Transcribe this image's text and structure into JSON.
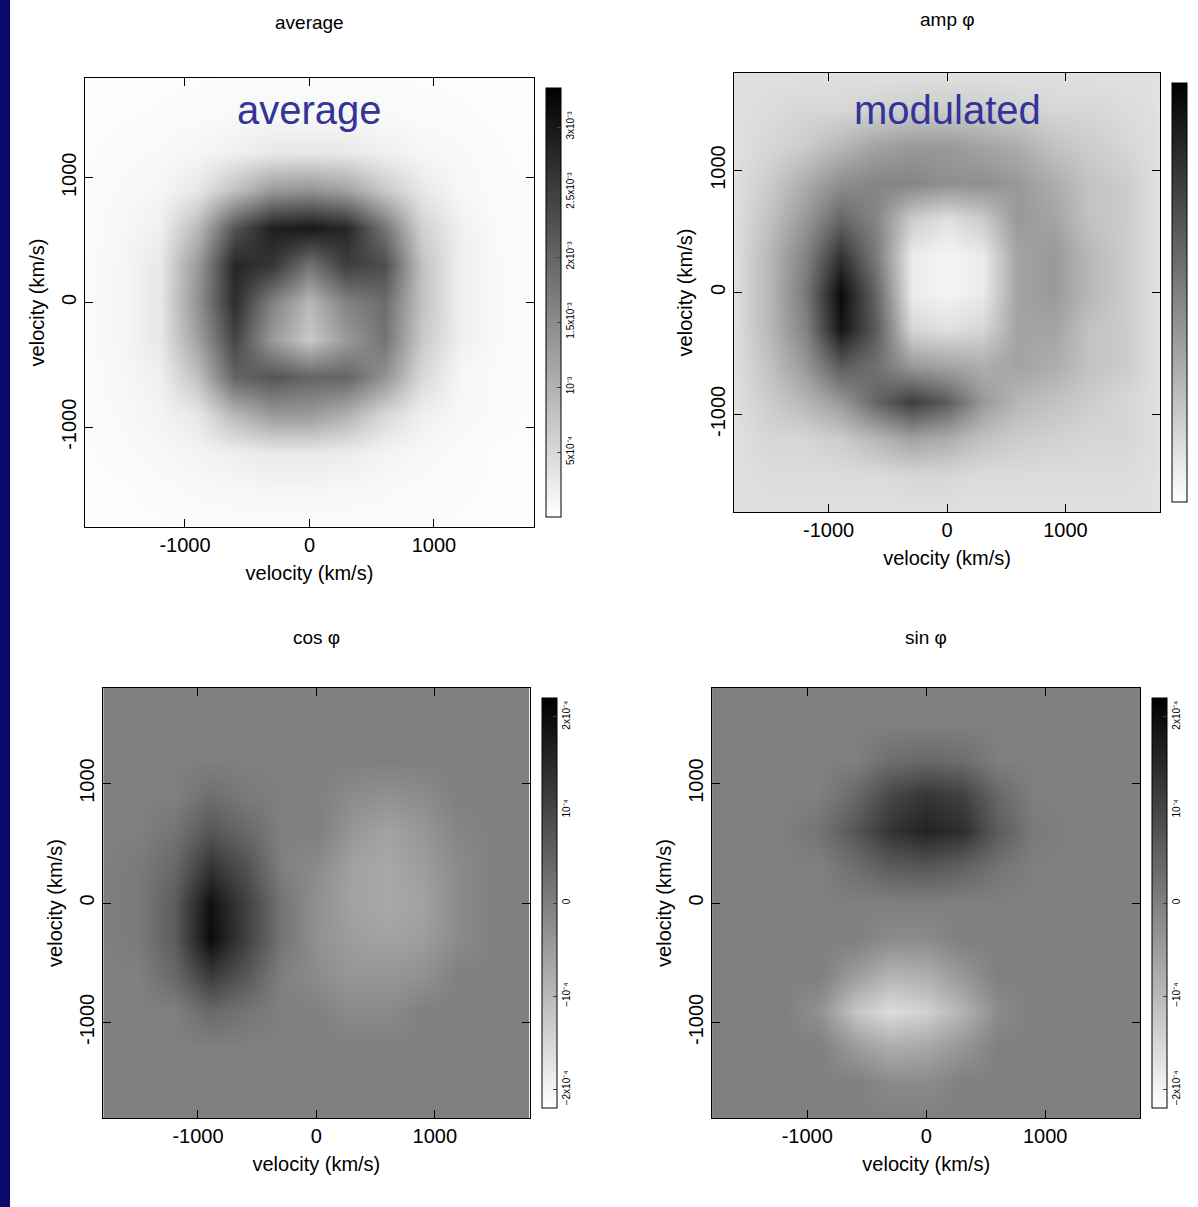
{
  "chart_data": [
    {
      "type": "heatmap",
      "title": "average",
      "annotations": [
        "average"
      ],
      "xlabel": "velocity (km/s)",
      "ylabel": "velocity (km/s)",
      "xlim": [
        -1800,
        1800
      ],
      "ylim": [
        -1800,
        1800
      ],
      "xticks": [
        -1000,
        0,
        1000
      ],
      "yticks": [
        -1000,
        0,
        1000
      ],
      "x": [
        -1800,
        -1500,
        -1200,
        -900,
        -600,
        -300,
        0,
        300,
        600,
        900,
        1200,
        1500,
        1800
      ],
      "y": [
        -1800,
        -1500,
        -1200,
        -900,
        -600,
        -300,
        0,
        300,
        600,
        900,
        1200,
        1500,
        1800
      ],
      "z": [
        [
          2e-05,
          3e-05,
          4e-05,
          5e-05,
          5e-05,
          5e-05,
          5e-05,
          5e-05,
          5e-05,
          5e-05,
          4e-05,
          3e-05,
          2e-05
        ],
        [
          3e-05,
          4e-05,
          6e-05,
          8e-05,
          0.0001,
          0.00012,
          0.00012,
          0.0001,
          8e-05,
          6e-05,
          5e-05,
          4e-05,
          3e-05
        ],
        [
          4e-05,
          6e-05,
          0.0001,
          0.00015,
          0.00022,
          0.0003,
          0.0003,
          0.00025,
          0.00015,
          0.0001,
          6e-05,
          4e-05,
          3e-05
        ],
        [
          5e-05,
          8e-05,
          0.00015,
          0.0003,
          0.0009,
          0.0013,
          0.0013,
          0.001,
          0.0005,
          0.0002,
          0.0001,
          6e-05,
          4e-05
        ],
        [
          5e-05,
          0.0001,
          0.0002,
          0.0008,
          0.002,
          0.0022,
          0.002,
          0.002,
          0.0014,
          0.0005,
          0.0001,
          6e-05,
          4e-05
        ],
        [
          6e-05,
          0.00012,
          0.0003,
          0.0012,
          0.0024,
          0.0013,
          0.0007,
          0.0013,
          0.0018,
          0.0007,
          0.0002,
          8e-05,
          4e-05
        ],
        [
          6e-05,
          0.00012,
          0.0003,
          0.0014,
          0.0027,
          0.0016,
          0.0009,
          0.0016,
          0.0019,
          0.0008,
          0.0002,
          8e-05,
          4e-05
        ],
        [
          6e-05,
          0.00012,
          0.0003,
          0.0013,
          0.0028,
          0.0026,
          0.0018,
          0.0025,
          0.0023,
          0.0008,
          0.0002,
          8e-05,
          4e-05
        ],
        [
          5e-05,
          0.0001,
          0.0002,
          0.0009,
          0.0022,
          0.0029,
          0.003,
          0.0028,
          0.0018,
          0.0006,
          0.0002,
          6e-05,
          4e-05
        ],
        [
          5e-05,
          8e-05,
          0.00012,
          0.0003,
          0.0008,
          0.0013,
          0.0014,
          0.0012,
          0.0007,
          0.0003,
          0.0001,
          6e-05,
          4e-05
        ],
        [
          4e-05,
          6e-05,
          8e-05,
          0.00012,
          0.0002,
          0.0003,
          0.0003,
          0.0003,
          0.0002,
          0.00012,
          8e-05,
          5e-05,
          3e-05
        ],
        [
          3e-05,
          4e-05,
          5e-05,
          6e-05,
          8e-05,
          0.0001,
          0.0001,
          0.0001,
          8e-05,
          6e-05,
          5e-05,
          4e-05,
          3e-05
        ],
        [
          2e-05,
          3e-05,
          4e-05,
          4e-05,
          5e-05,
          5e-05,
          5e-05,
          5e-05,
          5e-05,
          4e-05,
          4e-05,
          3e-05,
          2e-05
        ]
      ],
      "colorbar": {
        "range": [
          0,
          0.0033
        ],
        "ticks": [
          {
            "value": 0.0005,
            "label": "5x10⁻⁴"
          },
          {
            "value": 0.001,
            "label": "10⁻³"
          },
          {
            "value": 0.0015,
            "label": "1.5x10⁻³"
          },
          {
            "value": 0.002,
            "label": "2x10⁻³"
          },
          {
            "value": 0.0025,
            "label": "2.5x10⁻³"
          },
          {
            "value": 0.003,
            "label": "3x10⁻³"
          }
        ]
      }
    },
    {
      "type": "heatmap",
      "title": "amp φ",
      "annotations": [
        "modulated"
      ],
      "xlabel": "velocity (km/s)",
      "ylabel": "velocity (km/s)",
      "xlim": [
        -1800,
        1800
      ],
      "ylim": [
        -1800,
        1800
      ],
      "xticks": [
        -1000,
        0,
        1000
      ],
      "yticks": [
        -1000,
        0,
        1000
      ],
      "x": [
        -1800,
        -1500,
        -1200,
        -900,
        -600,
        -300,
        0,
        300,
        600,
        900,
        1200,
        1500,
        1800
      ],
      "y": [
        -1800,
        -1500,
        -1200,
        -900,
        -600,
        -300,
        0,
        300,
        600,
        900,
        1200,
        1500,
        1800
      ],
      "z": [
        [
          3e-05,
          3e-05,
          3e-05,
          3e-05,
          3e-05,
          3e-05,
          3e-05,
          3e-05,
          3e-05,
          3e-05,
          3e-05,
          3e-05,
          3e-05
        ],
        [
          3e-05,
          3.5e-05,
          3.5e-05,
          3.5e-05,
          3.5e-05,
          4e-05,
          4e-05,
          3.5e-05,
          3.5e-05,
          3.5e-05,
          3.5e-05,
          3.5e-05,
          3e-05
        ],
        [
          3e-05,
          4e-05,
          4e-05,
          5e-05,
          7e-05,
          9e-05,
          8e-05,
          6e-05,
          5e-05,
          4.5e-05,
          4e-05,
          4e-05,
          3e-05
        ],
        [
          3e-05,
          5e-05,
          7e-05,
          0.0001,
          0.00015,
          0.00019,
          0.00016,
          0.0001,
          7e-05,
          6e-05,
          5e-05,
          4e-05,
          3e-05
        ],
        [
          3e-05,
          6e-05,
          0.0001,
          0.00016,
          0.00014,
          0.0001,
          9e-05,
          8e-05,
          9e-05,
          8e-05,
          6e-05,
          5e-05,
          3e-05
        ],
        [
          3e-05,
          7e-05,
          0.00012,
          0.00023,
          0.00016,
          4e-05,
          3e-05,
          4e-05,
          9e-05,
          9e-05,
          6e-05,
          5e-05,
          3e-05
        ],
        [
          3e-05,
          7e-05,
          0.00013,
          0.00024,
          0.00015,
          2e-05,
          1e-05,
          2e-05,
          9e-05,
          0.0001,
          7e-05,
          5e-05,
          3e-05
        ],
        [
          3e-05,
          7e-05,
          0.00012,
          0.0002,
          0.00013,
          2e-05,
          1e-05,
          2e-05,
          9e-05,
          0.0001,
          7e-05,
          5e-05,
          3e-05
        ],
        [
          3e-05,
          6e-05,
          0.0001,
          0.00015,
          0.00012,
          5e-05,
          3e-05,
          5e-05,
          0.0001,
          9e-05,
          6e-05,
          5e-05,
          3e-05
        ],
        [
          3e-05,
          5e-05,
          8e-05,
          0.00011,
          0.00012,
          0.00012,
          0.00011,
          0.00011,
          0.0001,
          8e-05,
          6e-05,
          5e-05,
          3e-05
        ],
        [
          3e-05,
          4e-05,
          5e-05,
          7e-05,
          9e-05,
          0.0001,
          0.0001,
          9e-05,
          8e-05,
          6e-05,
          5e-05,
          4e-05,
          3e-05
        ],
        [
          3e-05,
          3.5e-05,
          4e-05,
          4e-05,
          4.5e-05,
          5e-05,
          5e-05,
          5e-05,
          4.5e-05,
          4e-05,
          4e-05,
          3.5e-05,
          3e-05
        ],
        [
          3e-05,
          3e-05,
          3e-05,
          3e-05,
          3e-05,
          3e-05,
          3e-05,
          3e-05,
          3e-05,
          3e-05,
          3e-05,
          3e-05,
          3e-05
        ]
      ],
      "colorbar": {
        "range": [
          0,
          0.00025
        ]
      }
    },
    {
      "type": "heatmap",
      "title": "cos φ",
      "xlabel": "velocity (km/s)",
      "ylabel": "velocity (km/s)",
      "xlim": [
        -1800,
        1800
      ],
      "ylim": [
        -1800,
        1800
      ],
      "xticks": [
        -1000,
        0,
        1000
      ],
      "yticks": [
        -1000,
        0,
        1000
      ],
      "x": [
        -1800,
        -1500,
        -1200,
        -900,
        -600,
        -300,
        0,
        300,
        600,
        900,
        1200,
        1500,
        1800
      ],
      "y": [
        -1800,
        -1500,
        -1200,
        -900,
        -600,
        -300,
        0,
        300,
        600,
        900,
        1200,
        1500,
        1800
      ],
      "z": [
        [
          0,
          0,
          0,
          0,
          0,
          0,
          0,
          0,
          0,
          0,
          0,
          0,
          0
        ],
        [
          0,
          0,
          0,
          0,
          0,
          0,
          0,
          0,
          0,
          0,
          0,
          0,
          0
        ],
        [
          0,
          0,
          0,
          0,
          0,
          0,
          0,
          0,
          0,
          0,
          0,
          0,
          0
        ],
        [
          0,
          0,
          0,
          4e-05,
          2e-05,
          0,
          0,
          -2e-05,
          -2e-05,
          0,
          0,
          0,
          0
        ],
        [
          0,
          0,
          4e-05,
          0.00012,
          7e-05,
          0,
          -2e-05,
          -4e-05,
          -4e-05,
          -3e-05,
          0,
          0,
          0
        ],
        [
          0,
          1e-05,
          6e-05,
          0.0002,
          0.00011,
          2e-05,
          -3e-05,
          -5e-05,
          -6e-05,
          -5e-05,
          -2e-05,
          0,
          0
        ],
        [
          0,
          1e-05,
          6e-05,
          0.00019,
          0.00011,
          2e-05,
          -3e-05,
          -6e-05,
          -7e-05,
          -6e-05,
          -2e-05,
          0,
          0
        ],
        [
          0,
          1e-05,
          4e-05,
          0.00013,
          8e-05,
          0,
          -2e-05,
          -6e-05,
          -7e-05,
          -5e-05,
          -2e-05,
          0,
          0
        ],
        [
          0,
          0,
          2e-05,
          7e-05,
          4e-05,
          0,
          0,
          -4e-05,
          -6e-05,
          -4e-05,
          -1e-05,
          0,
          0
        ],
        [
          0,
          0,
          0,
          3e-05,
          1e-05,
          0,
          0,
          -2e-05,
          -3e-05,
          -2e-05,
          0,
          0,
          0
        ],
        [
          0,
          0,
          0,
          0,
          0,
          0,
          0,
          0,
          0,
          0,
          0,
          0,
          0
        ],
        [
          0,
          0,
          0,
          0,
          0,
          0,
          0,
          0,
          0,
          0,
          0,
          0,
          0
        ],
        [
          0,
          0,
          0,
          0,
          0,
          0,
          0,
          0,
          0,
          0,
          0,
          0,
          0
        ]
      ],
      "colorbar": {
        "range": [
          -0.00022,
          0.00022
        ],
        "ticks": [
          {
            "value": -0.0002,
            "label": "−2x10⁻⁴"
          },
          {
            "value": -0.0001,
            "label": "−10⁻⁴"
          },
          0,
          {
            "value": 0.0001,
            "label": "10⁻⁴"
          },
          {
            "value": 0.0002,
            "label": "2x10⁻⁴"
          }
        ]
      }
    },
    {
      "type": "heatmap",
      "title": "sin φ",
      "xlabel": "velocity (km/s)",
      "ylabel": "velocity (km/s)",
      "xlim": [
        -1800,
        1800
      ],
      "ylim": [
        -1800,
        1800
      ],
      "xticks": [
        -1000,
        0,
        1000
      ],
      "yticks": [
        -1000,
        0,
        1000
      ],
      "x": [
        -1800,
        -1500,
        -1200,
        -900,
        -600,
        -300,
        0,
        300,
        600,
        900,
        1200,
        1500,
        1800
      ],
      "y": [
        -1800,
        -1500,
        -1200,
        -900,
        -600,
        -300,
        0,
        300,
        600,
        900,
        1200,
        1500,
        1800
      ],
      "z": [
        [
          0,
          0,
          0,
          0,
          0,
          0,
          0,
          0,
          0,
          0,
          0,
          0,
          0
        ],
        [
          0,
          0,
          0,
          0,
          0,
          -2e-05,
          -2e-05,
          0,
          0,
          0,
          0,
          0,
          0
        ],
        [
          0,
          0,
          0,
          0,
          -5e-05,
          -8e-05,
          -7e-05,
          -4e-05,
          0,
          0,
          0,
          0,
          0
        ],
        [
          0,
          0,
          0,
          -3e-05,
          -0.00012,
          -0.00016,
          -0.00014,
          -9e-05,
          -2e-05,
          0,
          0,
          0,
          0
        ],
        [
          0,
          0,
          0,
          0,
          -5e-05,
          -9e-05,
          -8e-05,
          -4e-05,
          0,
          0,
          0,
          0,
          0
        ],
        [
          0,
          0,
          0,
          0,
          0,
          -2e-05,
          -2e-05,
          0,
          0,
          0,
          0,
          0,
          0
        ],
        [
          0,
          0,
          0,
          0,
          0,
          0,
          0,
          0,
          0,
          0,
          0,
          0,
          0
        ],
        [
          0,
          0,
          0,
          0,
          3e-05,
          6e-05,
          7e-05,
          5e-05,
          2e-05,
          0,
          0,
          0,
          0
        ],
        [
          0,
          0,
          0,
          2e-05,
          7e-05,
          0.00013,
          0.00016,
          0.00014,
          6e-05,
          1e-05,
          0,
          0,
          0
        ],
        [
          0,
          0,
          0,
          0,
          4e-05,
          0.0001,
          0.00013,
          0.00011,
          4e-05,
          0,
          0,
          0,
          0
        ],
        [
          0,
          0,
          0,
          0,
          0,
          3e-05,
          4e-05,
          3e-05,
          0,
          0,
          0,
          0,
          0
        ],
        [
          0,
          0,
          0,
          0,
          0,
          0,
          0,
          0,
          0,
          0,
          0,
          0,
          0
        ],
        [
          0,
          0,
          0,
          0,
          0,
          0,
          0,
          0,
          0,
          0,
          0,
          0,
          0
        ]
      ],
      "colorbar": {
        "range": [
          -0.00022,
          0.00022
        ],
        "ticks": [
          {
            "value": -0.0002,
            "label": "−2x10⁻⁴"
          },
          {
            "value": -0.0001,
            "label": "−10⁻⁴"
          },
          0,
          {
            "value": 0.0001,
            "label": "10⁻⁴"
          },
          {
            "value": 0.0002,
            "label": "2x10⁻⁴"
          }
        ]
      }
    }
  ]
}
